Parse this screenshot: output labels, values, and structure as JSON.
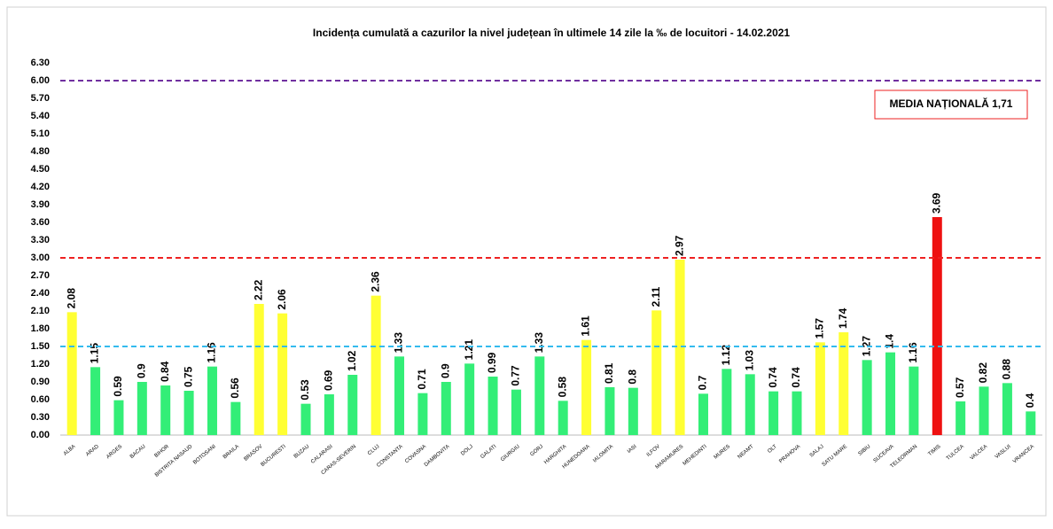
{
  "chart_data": {
    "type": "bar",
    "title": "Incidența cumulată a cazurilor la nivel județean în ultimele 14 zile la ‰ de locuitori - 14.02.2021",
    "annotation": "MEDIA NAȚIONALĂ  1,71",
    "categories": [
      "ALBA",
      "ARAD",
      "ARGES",
      "BACAU",
      "BIHOR",
      "BISTRITA NASAUD",
      "BOTOSANI",
      "BRAILA",
      "BRASOV",
      "BUCURESTI",
      "BUZAU",
      "CALARASI",
      "CARAS-SEVERIN",
      "CLUJ",
      "CONSTANTA",
      "COVASNA",
      "DAMBOVITA",
      "DOLJ",
      "GALATI",
      "GIURGIU",
      "GORJ",
      "HARGHITA",
      "HUNEDOARA",
      "IALOMITA",
      "IASI",
      "ILFOV",
      "MARAMURES",
      "MEHEDINTI",
      "MURES",
      "NEAMT",
      "OLT",
      "PRAHOVA",
      "SALAJ",
      "SATU MARE",
      "SIBIU",
      "SUCEAVA",
      "TELEORMAN",
      "TIMIS",
      "TULCEA",
      "VALCEA",
      "VASLUI",
      "VRANCEA"
    ],
    "values": [
      2.08,
      1.15,
      0.59,
      0.9,
      0.84,
      0.75,
      1.16,
      0.56,
      2.22,
      2.06,
      0.53,
      0.69,
      1.02,
      2.36,
      1.33,
      0.71,
      0.9,
      1.21,
      0.99,
      0.77,
      1.33,
      0.58,
      1.61,
      0.81,
      0.8,
      2.11,
      2.97,
      0.7,
      1.12,
      1.03,
      0.74,
      0.74,
      1.57,
      1.74,
      1.27,
      1.4,
      1.16,
      3.69,
      0.57,
      0.82,
      0.88,
      0.4
    ],
    "colors": [
      "#ffff33",
      "#33ee77",
      "#33ee77",
      "#33ee77",
      "#33ee77",
      "#33ee77",
      "#33ee77",
      "#33ee77",
      "#ffff33",
      "#ffff33",
      "#33ee77",
      "#33ee77",
      "#33ee77",
      "#ffff33",
      "#33ee77",
      "#33ee77",
      "#33ee77",
      "#33ee77",
      "#33ee77",
      "#33ee77",
      "#33ee77",
      "#33ee77",
      "#ffff33",
      "#33ee77",
      "#33ee77",
      "#ffff33",
      "#ffff33",
      "#33ee77",
      "#33ee77",
      "#33ee77",
      "#33ee77",
      "#33ee77",
      "#ffff33",
      "#ffff33",
      "#33ee77",
      "#33ee77",
      "#33ee77",
      "#ee1111",
      "#33ee77",
      "#33ee77",
      "#33ee77",
      "#33ee77"
    ],
    "ylim": [
      0,
      6.3
    ],
    "yticks": [
      {
        "value": 0,
        "label": "0.00"
      },
      {
        "value": 0.3,
        "label": "0.30"
      },
      {
        "value": 0.6,
        "label": "0.60"
      },
      {
        "value": 0.9,
        "label": "0.90"
      },
      {
        "value": 1.2,
        "label": "1.20"
      },
      {
        "value": 1.5,
        "label": "1.50"
      },
      {
        "value": 1.8,
        "label": "1.80"
      },
      {
        "value": 2.1,
        "label": "2.10"
      },
      {
        "value": 2.4,
        "label": "2.40"
      },
      {
        "value": 2.7,
        "label": "2.70"
      },
      {
        "value": 3,
        "label": "3.00"
      },
      {
        "value": 3.3,
        "label": "3.30"
      },
      {
        "value": 3.6,
        "label": "3.60"
      },
      {
        "value": 3.9,
        "label": "3.90"
      },
      {
        "value": 4.2,
        "label": "4.20"
      },
      {
        "value": 4.5,
        "label": "4.50"
      },
      {
        "value": 4.8,
        "label": "4.80"
      },
      {
        "value": 5.1,
        "label": "5.10"
      },
      {
        "value": 5.4,
        "label": "5.40"
      },
      {
        "value": 5.7,
        "label": "5.70"
      },
      {
        "value": 6,
        "label": "6.00"
      },
      {
        "value": 6.3,
        "label": "6.30"
      }
    ],
    "reference_lines": [
      {
        "value": 6,
        "color": "#7030a0"
      },
      {
        "value": 3,
        "color": "#ee2222"
      },
      {
        "value": 1.5,
        "color": "#33bbee"
      }
    ],
    "grid": false
  }
}
